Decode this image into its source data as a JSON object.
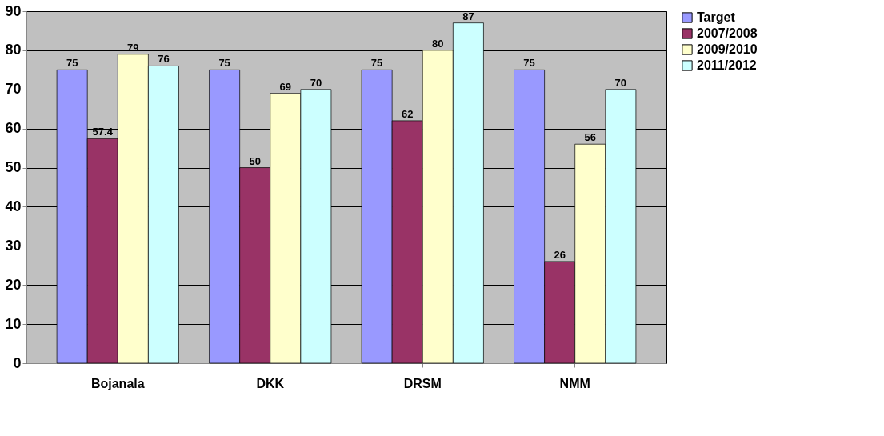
{
  "chart_data": {
    "type": "bar",
    "categories": [
      "Bojanala",
      "DKK",
      "DRSM",
      "NMM"
    ],
    "series": [
      {
        "name": "Target",
        "color": "#9999ff",
        "values": [
          75,
          75,
          75,
          75
        ]
      },
      {
        "name": "2007/2008",
        "color": "#993366",
        "values": [
          57.4,
          50,
          62,
          26
        ]
      },
      {
        "name": "2009/2010",
        "color": "#ffffcc",
        "values": [
          79,
          69,
          80,
          56
        ]
      },
      {
        "name": "2011/2012",
        "color": "#ccffff",
        "values": [
          76,
          70,
          87,
          70
        ]
      }
    ],
    "ylim": [
      0,
      90
    ],
    "yticks": [
      0,
      10,
      20,
      30,
      40,
      50,
      60,
      70,
      80,
      90
    ],
    "grid": "y",
    "legend": "right",
    "data_labels": true
  }
}
